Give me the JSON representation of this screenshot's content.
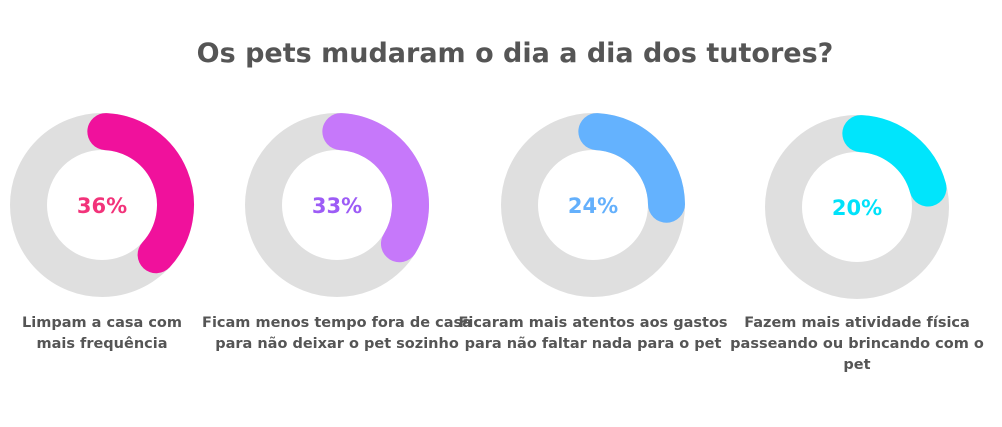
{
  "chart_data": {
    "type": "pie",
    "title": "Os pets mudaram o dia a dia dos tutores?",
    "track_color": "#dfdfdf",
    "items": [
      {
        "value": 36,
        "label": "36%",
        "caption": [
          "Limpam a casa com",
          "mais frequência"
        ],
        "color": "#f0119c",
        "text_color": "#f2337a"
      },
      {
        "value": 33,
        "label": "33%",
        "caption": [
          "Ficam menos tempo fora de casa",
          "para não deixar o pet sozinho"
        ],
        "color": "#c678fa",
        "text_color": "#9d5cf6"
      },
      {
        "value": 24,
        "label": "24%",
        "caption": [
          "Ficaram mais atentos aos gastos",
          "para não faltar nada para o pet"
        ],
        "color": "#64b2fe",
        "text_color": "#64b0fc"
      },
      {
        "value": 20,
        "label": "20%",
        "caption": [
          "Fazem mais atividade física",
          "passeando ou brincando com o pet"
        ],
        "color": "#00e5fc",
        "text_color": "#00e2fa"
      }
    ]
  }
}
